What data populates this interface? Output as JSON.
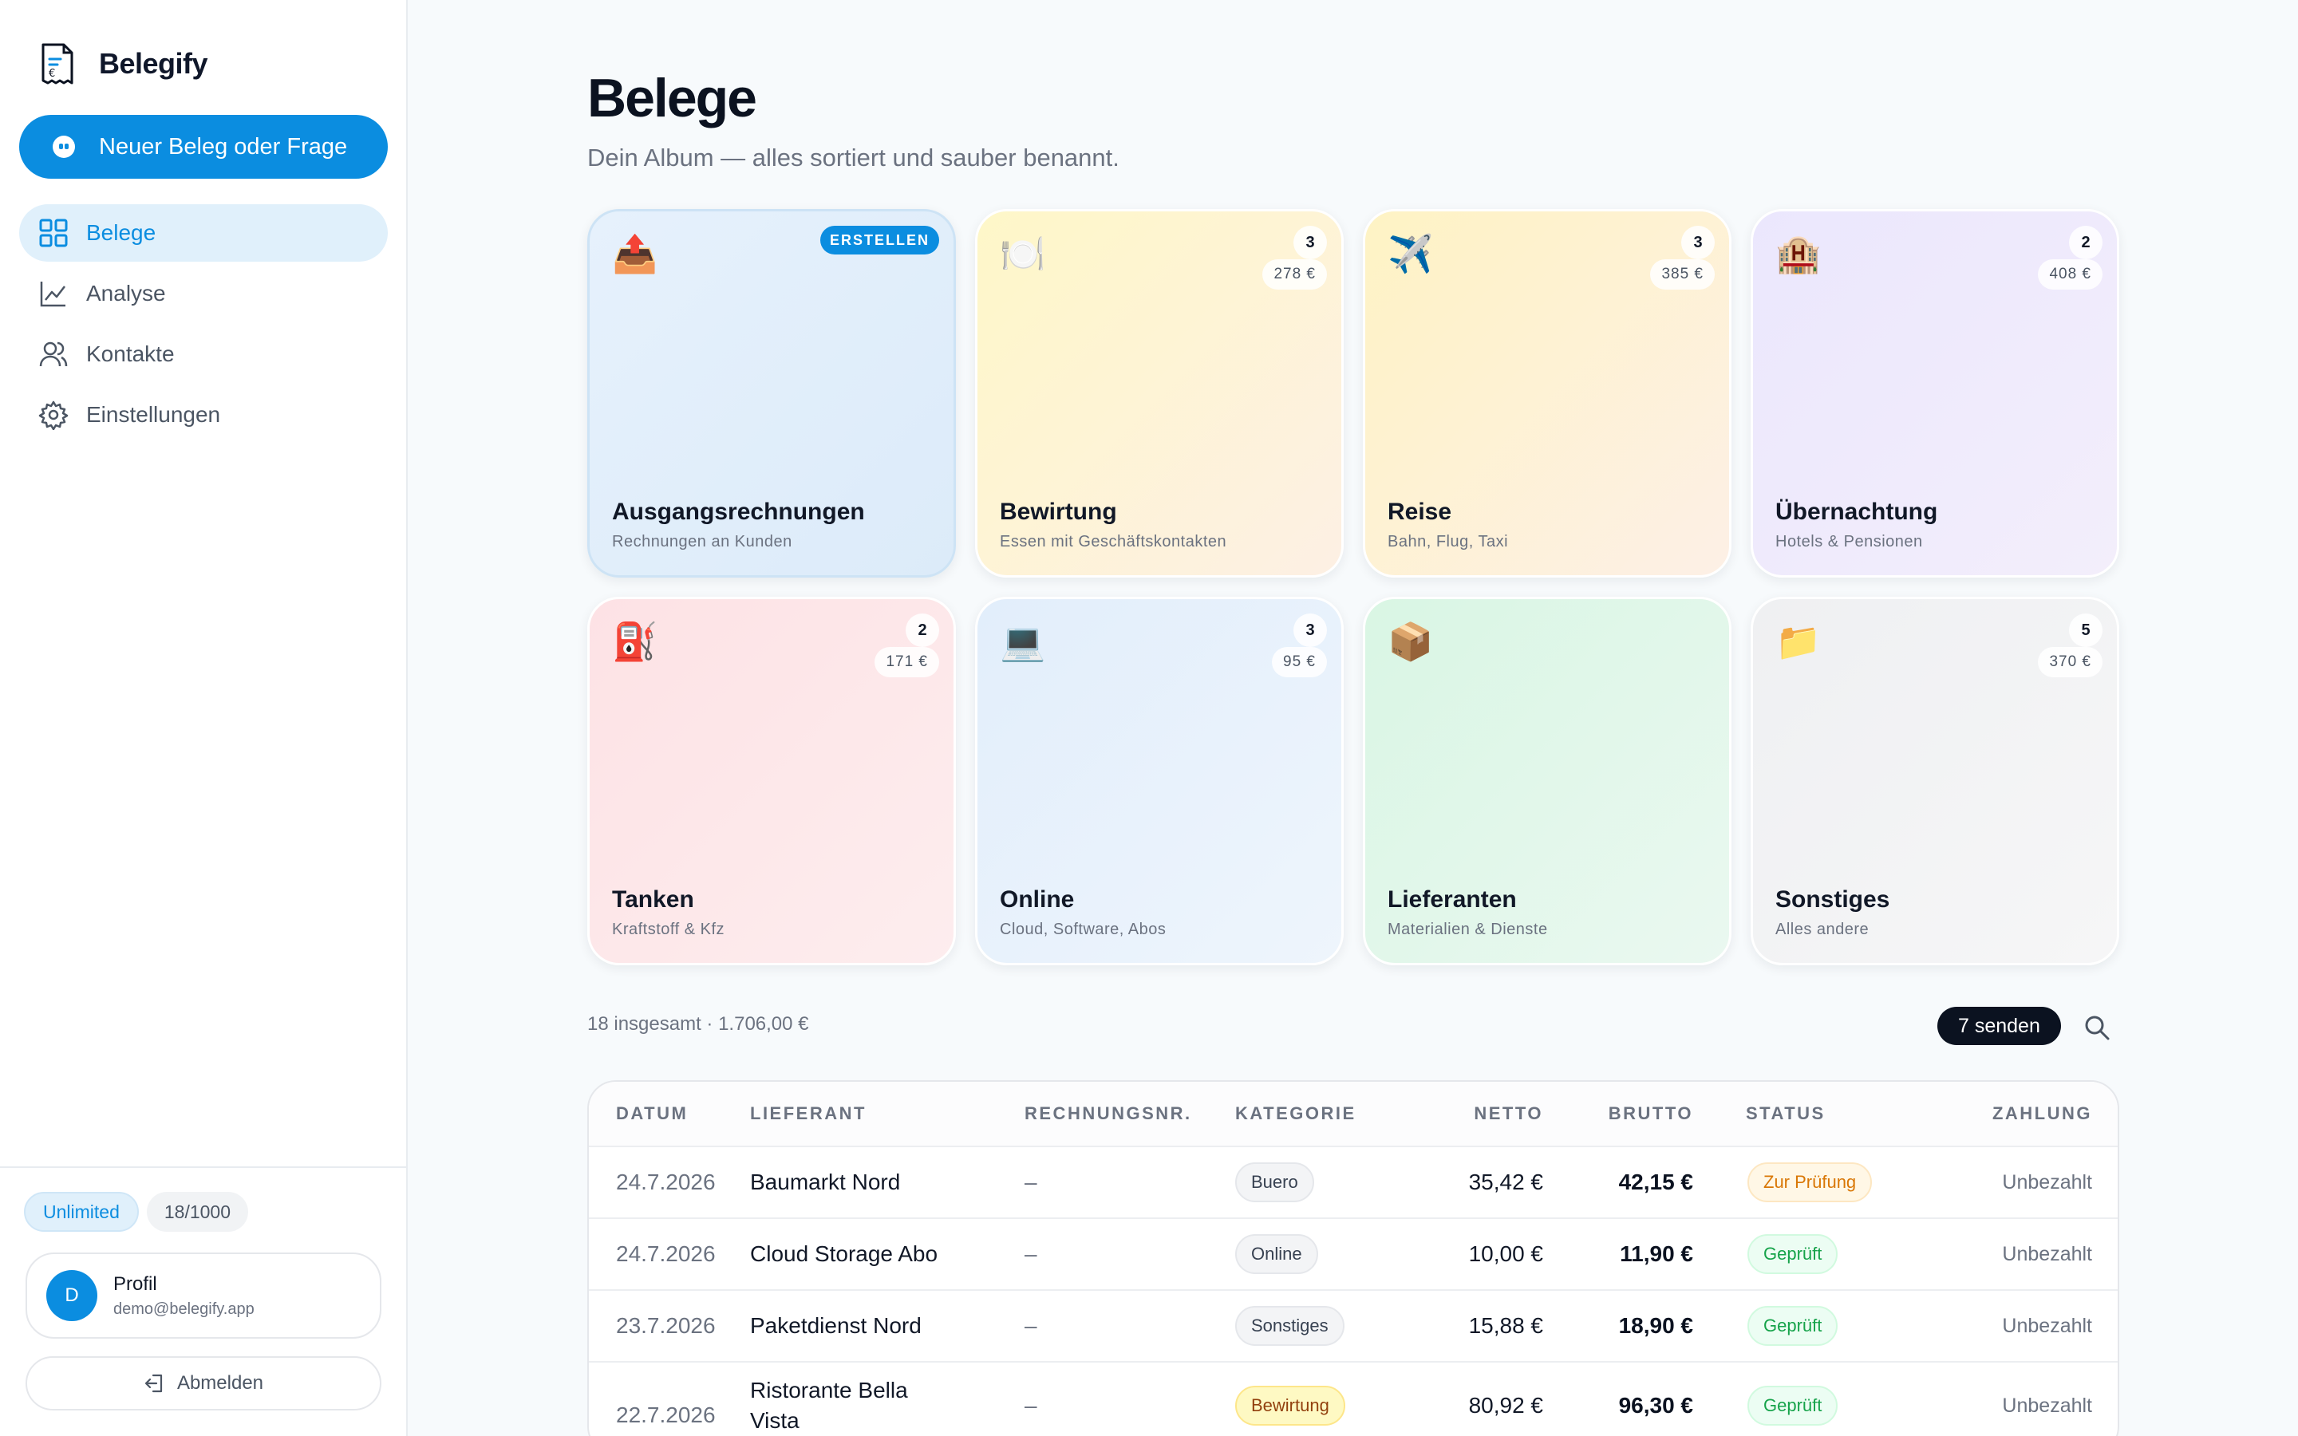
{
  "sidebar": {
    "brand": "Belegify",
    "new_button": "Neuer Beleg oder Frage",
    "nav": [
      {
        "label": "Belege",
        "icon": "grid-icon"
      },
      {
        "label": "Analyse",
        "icon": "chart-icon"
      },
      {
        "label": "Kontakte",
        "icon": "users-icon"
      },
      {
        "label": "Einstellungen",
        "icon": "gear-icon"
      }
    ],
    "plan": "Unlimited",
    "usage": "18/1000",
    "profile": {
      "initial": "D",
      "name": "Profil",
      "email": "demo@belegify.app"
    },
    "logout": "Abmelden"
  },
  "main": {
    "title": "Belege",
    "subtitle": "Dein Album — alles sortiert und sauber benannt."
  },
  "categories": [
    {
      "name": "Ausgangsrechnungen",
      "desc": "Rechnungen an Kunden",
      "emoji": "📤",
      "action": "ERSTELLEN",
      "color": "#e3f0fb"
    },
    {
      "name": "Bewirtung",
      "desc": "Essen mit Geschäftskontakten",
      "emoji": "🍽️",
      "count": "3",
      "amount": "278 €",
      "color": "#fdf6c9"
    },
    {
      "name": "Reise",
      "desc": "Bahn, Flug, Taxi",
      "emoji": "✈️",
      "count": "3",
      "amount": "385 €",
      "color": "#fdf2c6"
    },
    {
      "name": "Übernachtung",
      "desc": "Hotels & Pensionen",
      "emoji": "🏨",
      "count": "2",
      "amount": "408 €",
      "color": "#ece9fc"
    },
    {
      "name": "Tanken",
      "desc": "Kraftstoff & Kfz",
      "emoji": "⛽",
      "count": "2",
      "amount": "171 €",
      "color": "#fde4e6"
    },
    {
      "name": "Online",
      "desc": "Cloud, Software, Abos",
      "emoji": "💻",
      "count": "3",
      "amount": "95 €",
      "color": "#e3effb"
    },
    {
      "name": "Lieferanten",
      "desc": "Materialien & Dienste",
      "emoji": "📦",
      "color": "#dcf7e6"
    },
    {
      "name": "Sonstiges",
      "desc": "Alles andere",
      "emoji": "📁",
      "count": "5",
      "amount": "370 €",
      "color": "#f1f2f4"
    }
  ],
  "summary": "18 insgesamt · 1.706,00 €",
  "send_button": "7 senden",
  "table": {
    "headers": {
      "date": "DATUM",
      "supplier": "LIEFERANT",
      "invoice": "RECHNUNGSNR.",
      "category": "KATEGORIE",
      "net": "NETTO",
      "gross": "BRUTTO",
      "status": "STATUS",
      "payment": "ZAHLUNG"
    },
    "rows": [
      {
        "date": "24.7.2026",
        "supplier": "Baumarkt Nord",
        "invoice": "–",
        "category": "Buero",
        "net": "35,42 €",
        "gross": "42,15 €",
        "status": "Zur Prüfung",
        "payment": "Unbezahlt"
      },
      {
        "date": "24.7.2026",
        "supplier": "Cloud Storage Abo",
        "invoice": "–",
        "category": "Online",
        "net": "10,00 €",
        "gross": "11,90 €",
        "status": "Geprüft",
        "payment": "Unbezahlt"
      },
      {
        "date": "23.7.2026",
        "supplier": "Paketdienst Nord",
        "invoice": "–",
        "category": "Sonstiges",
        "net": "15,88 €",
        "gross": "18,90 €",
        "status": "Geprüft",
        "payment": "Unbezahlt"
      },
      {
        "date": "22.7.2026",
        "supplier": "Ristorante Bella Vista",
        "invoice": "–",
        "category": "Bewirtung",
        "net": "80,92 €",
        "gross": "96,30 €",
        "status": "Geprüft",
        "payment": "Unbezahlt"
      }
    ]
  }
}
